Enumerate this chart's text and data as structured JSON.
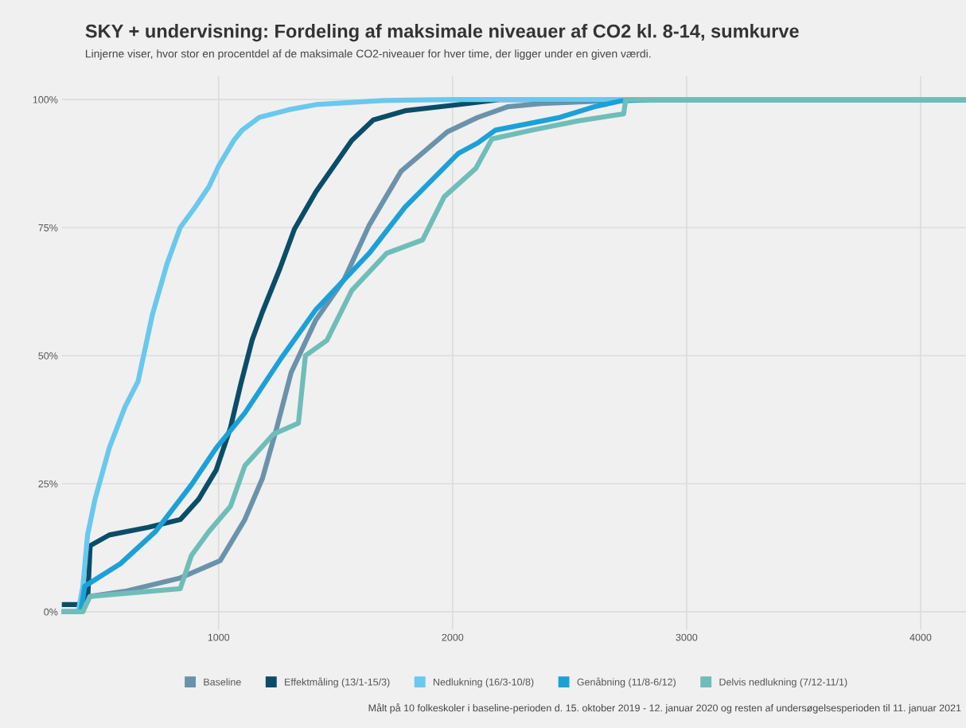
{
  "chart_data": {
    "type": "line",
    "title": "SKY + undervisning: Fordeling af maksimale niveauer af CO2 kl. 8-14, sumkurve",
    "subtitle": "Linjerne viser, hvor stor en procentdel af de maksimale CO2-niveauer for hver time, der ligger under en given værdi.",
    "annotations": [
      "Målt på 10 folkeskoler i baseline-perioden d. 15. oktober 2019 - 12. januar 2020 og resten af undersøgelsesperioden til 11. januar 2021"
    ],
    "series": [
      {
        "name": "Baseline",
        "color": "#6a93ab",
        "x": [
          330,
          400,
          430,
          450,
          600,
          836,
          1007,
          1112,
          1187,
          1249,
          1310,
          1416,
          1538,
          1644,
          1780,
          1978,
          2107,
          2237,
          2380,
          2800,
          4194
        ],
        "values": [
          0,
          0,
          2,
          3,
          4,
          6.6,
          10,
          18,
          26,
          36,
          46.7,
          57,
          65,
          75.5,
          86,
          93.7,
          96.5,
          98.6,
          99.2,
          100,
          100
        ]
      },
      {
        "name": "Effektmåling (13/1-15/3)",
        "color": "#0a4d68",
        "x": [
          330,
          397,
          440,
          451,
          533,
          700,
          836,
          915,
          990,
          1051,
          1095,
          1143,
          1187,
          1262,
          1324,
          1416,
          1508,
          1569,
          1661,
          1797,
          2025,
          2200,
          4194
        ],
        "values": [
          1.4,
          1.4,
          2,
          12.9,
          15,
          16.5,
          18,
          22,
          27.7,
          36,
          44.5,
          53,
          58.5,
          67,
          74.7,
          82,
          88,
          92,
          96,
          97.8,
          99,
          100,
          100
        ]
      },
      {
        "name": "Nedlukning (16/3-10/8)",
        "color": "#69c8ee",
        "x": [
          330,
          400,
          420,
          440,
          472,
          533,
          600,
          656,
          717,
          780,
          836,
          900,
          959,
          1000,
          1065,
          1100,
          1174,
          1300,
          1416,
          1700,
          2000,
          4194
        ],
        "values": [
          0,
          0,
          5,
          15,
          22,
          32,
          40,
          45,
          58,
          68,
          75,
          79,
          83,
          87,
          92,
          94,
          96.5,
          98,
          99,
          99.8,
          100,
          100
        ]
      },
      {
        "name": "Genåbning (11/8-6/12)",
        "color": "#1ba1d8",
        "x": [
          330,
          410,
          428,
          581,
          731,
          884,
          990,
          1112,
          1266,
          1416,
          1644,
          1797,
          2025,
          2107,
          2182,
          2458,
          2608,
          2717,
          2850,
          4194
        ],
        "values": [
          0,
          0,
          5,
          9.4,
          15.7,
          24.8,
          32,
          38.8,
          49.4,
          59,
          70,
          79,
          89.5,
          91.5,
          94,
          96.5,
          98.6,
          99.7,
          100,
          100
        ]
      },
      {
        "name": "Delvis nedlukning (7/12-11/1)",
        "color": "#6fbdb9",
        "x": [
          330,
          420,
          450,
          836,
          884,
          959,
          1051,
          1112,
          1235,
          1341,
          1371,
          1463,
          1569,
          1719,
          1872,
          1964,
          2100,
          2168,
          2336,
          2533,
          2731,
          2740,
          4194
        ],
        "values": [
          0,
          0,
          3,
          4.5,
          11,
          15.7,
          20.6,
          28.5,
          34.7,
          36.8,
          50,
          53,
          62.7,
          70,
          72.6,
          81,
          86.6,
          92.3,
          94,
          95.8,
          97.2,
          100,
          100
        ]
      }
    ],
    "xlim": [
      330,
      4194
    ],
    "xticks": [
      1000,
      2000,
      3000,
      4000
    ],
    "ylim": [
      -3.5,
      104.5
    ],
    "yticks": [
      {
        "value": 0,
        "label": "0%"
      },
      {
        "value": 25,
        "label": "25%"
      },
      {
        "value": 50,
        "label": "50%"
      },
      {
        "value": 75,
        "label": "75%"
      },
      {
        "value": 100,
        "label": "100%"
      }
    ],
    "grid": true,
    "legend": "bottom",
    "line_style": "solid",
    "marker": "none"
  }
}
